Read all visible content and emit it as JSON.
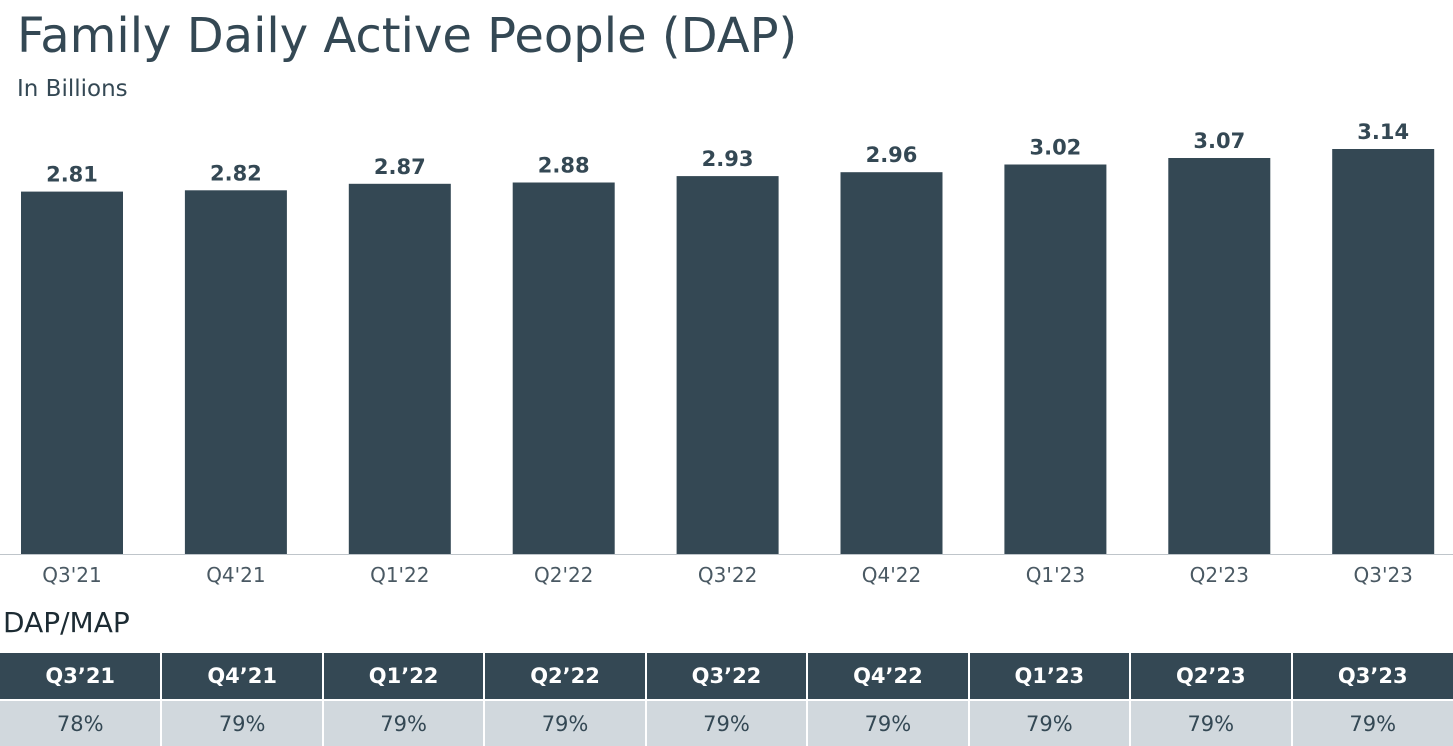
{
  "header": {
    "title": "Family Daily Active People (DAP)",
    "subtitle": "In Billions"
  },
  "chart_data": {
    "type": "bar",
    "categories": [
      "Q3'21",
      "Q4'21",
      "Q1'22",
      "Q2'22",
      "Q3'22",
      "Q4'22",
      "Q1'23",
      "Q2'23",
      "Q3'23"
    ],
    "values": [
      2.81,
      2.82,
      2.87,
      2.88,
      2.93,
      2.96,
      3.02,
      3.07,
      3.14
    ],
    "value_labels": [
      "2.81",
      "2.82",
      "2.87",
      "2.88",
      "2.93",
      "2.96",
      "3.02",
      "3.07",
      "3.14"
    ],
    "title": "Family Daily Active People (DAP)",
    "subtitle": "In Billions",
    "ylim": [
      0,
      3.14
    ],
    "grid": false,
    "bar_color": "#344854"
  },
  "ratio_table": {
    "title": "DAP/MAP",
    "headers": [
      "Q3’21",
      "Q4’21",
      "Q1’22",
      "Q2’22",
      "Q3’22",
      "Q4’22",
      "Q1’23",
      "Q2’23",
      "Q3’23"
    ],
    "values": [
      "78%",
      "79%",
      "79%",
      "79%",
      "79%",
      "79%",
      "79%",
      "79%",
      "79%"
    ]
  }
}
